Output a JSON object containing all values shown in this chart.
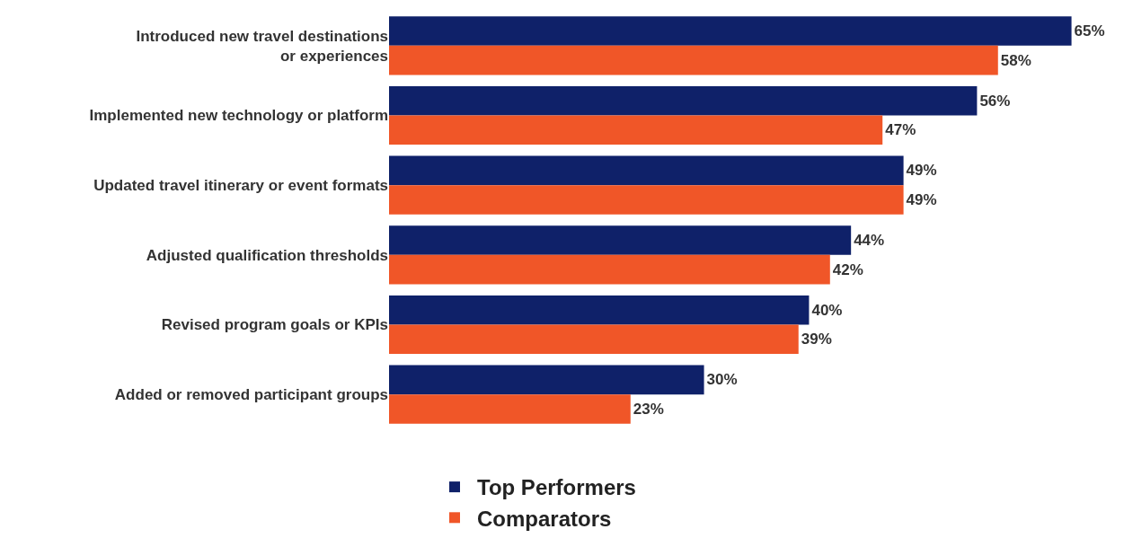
{
  "chart_data": {
    "type": "bar",
    "orientation": "horizontal",
    "categories": [
      "Introduced new travel destinations or experiences",
      "Implemented new technology or platform",
      "Updated travel itinerary or event formats",
      "Adjusted qualification thresholds",
      "Revised program goals or KPIs",
      "Added or removed participant groups"
    ],
    "series": [
      {
        "name": "Top Performers",
        "color": "#0f2169",
        "values": [
          65,
          56,
          49,
          44,
          40,
          30
        ],
        "value_labels": [
          "65%",
          "56%",
          "49%",
          "44%",
          "40%",
          "30%"
        ]
      },
      {
        "name": "Comparators",
        "color": "#f05628",
        "values": [
          58,
          47,
          49,
          42,
          39,
          23
        ],
        "value_labels": [
          "58%",
          "47%",
          "49%",
          "42%",
          "39%",
          "23%"
        ]
      }
    ],
    "xlim": [
      0,
      70
    ],
    "tick_labels": "y",
    "grid": false,
    "legend": "bottom"
  }
}
